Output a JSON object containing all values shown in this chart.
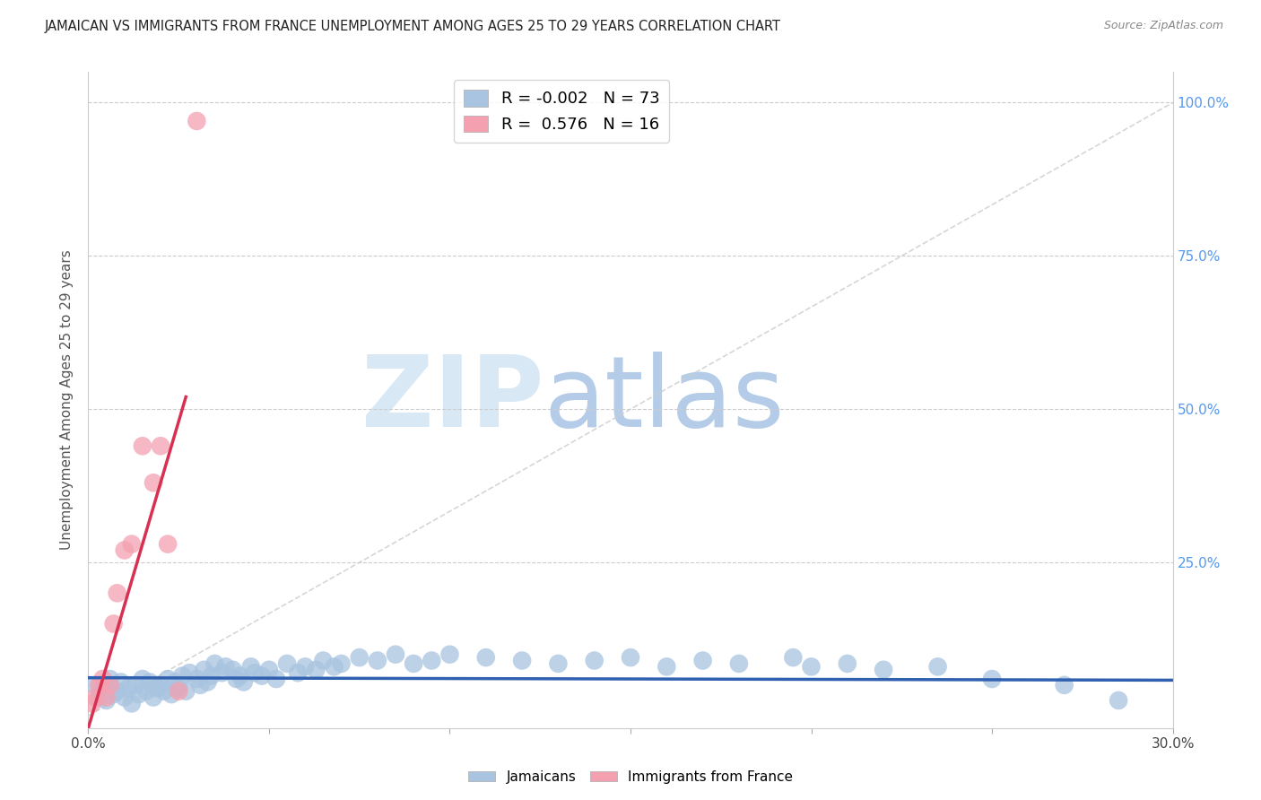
{
  "title": "JAMAICAN VS IMMIGRANTS FROM FRANCE UNEMPLOYMENT AMONG AGES 25 TO 29 YEARS CORRELATION CHART",
  "source": "Source: ZipAtlas.com",
  "ylabel": "Unemployment Among Ages 25 to 29 years",
  "xlim": [
    0.0,
    0.3
  ],
  "ylim": [
    -0.02,
    1.05
  ],
  "plot_ylim": [
    0.0,
    1.0
  ],
  "xticks": [
    0.0,
    0.05,
    0.1,
    0.15,
    0.2,
    0.25,
    0.3
  ],
  "yticks": [
    0.0,
    0.25,
    0.5,
    0.75,
    1.0
  ],
  "blue_color": "#a8c4e0",
  "pink_color": "#f4a0b0",
  "trend_blue_color": "#3060b0",
  "trend_pink_color": "#d83050",
  "diagonal_color": "#cccccc",
  "title_color": "#222222",
  "axis_label_color": "#555555",
  "right_tick_color": "#5599ee",
  "legend_blue_label": "R = -0.002   N = 73",
  "legend_pink_label": "R =  0.576   N = 16",
  "blue_scatter_x": [
    0.002,
    0.003,
    0.004,
    0.005,
    0.006,
    0.007,
    0.008,
    0.009,
    0.01,
    0.011,
    0.012,
    0.013,
    0.014,
    0.015,
    0.016,
    0.017,
    0.018,
    0.019,
    0.02,
    0.021,
    0.022,
    0.023,
    0.024,
    0.025,
    0.026,
    0.027,
    0.028,
    0.03,
    0.031,
    0.032,
    0.033,
    0.034,
    0.035,
    0.037,
    0.038,
    0.04,
    0.041,
    0.042,
    0.043,
    0.045,
    0.046,
    0.048,
    0.05,
    0.052,
    0.055,
    0.058,
    0.06,
    0.063,
    0.065,
    0.068,
    0.07,
    0.075,
    0.08,
    0.085,
    0.09,
    0.095,
    0.1,
    0.11,
    0.12,
    0.13,
    0.14,
    0.15,
    0.16,
    0.17,
    0.18,
    0.195,
    0.2,
    0.21,
    0.22,
    0.235,
    0.25,
    0.27,
    0.285
  ],
  "blue_scatter_y": [
    0.05,
    0.03,
    0.045,
    0.025,
    0.06,
    0.035,
    0.04,
    0.055,
    0.03,
    0.045,
    0.02,
    0.05,
    0.035,
    0.06,
    0.04,
    0.055,
    0.03,
    0.045,
    0.05,
    0.04,
    0.06,
    0.035,
    0.055,
    0.045,
    0.065,
    0.04,
    0.07,
    0.06,
    0.05,
    0.075,
    0.055,
    0.065,
    0.085,
    0.07,
    0.08,
    0.075,
    0.06,
    0.065,
    0.055,
    0.08,
    0.07,
    0.065,
    0.075,
    0.06,
    0.085,
    0.07,
    0.08,
    0.075,
    0.09,
    0.08,
    0.085,
    0.095,
    0.09,
    0.1,
    0.085,
    0.09,
    0.1,
    0.095,
    0.09,
    0.085,
    0.09,
    0.095,
    0.08,
    0.09,
    0.085,
    0.095,
    0.08,
    0.085,
    0.075,
    0.08,
    0.06,
    0.05,
    0.025
  ],
  "pink_scatter_x": [
    0.001,
    0.002,
    0.003,
    0.004,
    0.005,
    0.006,
    0.007,
    0.008,
    0.01,
    0.012,
    0.015,
    0.018,
    0.02,
    0.022,
    0.025,
    0.03
  ],
  "pink_scatter_y": [
    0.02,
    0.03,
    0.05,
    0.06,
    0.03,
    0.05,
    0.15,
    0.2,
    0.27,
    0.28,
    0.44,
    0.38,
    0.44,
    0.28,
    0.04,
    0.97
  ],
  "blue_trend_x": [
    0.0,
    0.3
  ],
  "blue_trend_y": [
    0.062,
    0.058
  ],
  "pink_trend_x": [
    0.0,
    0.027
  ],
  "pink_trend_y": [
    -0.02,
    0.52
  ]
}
